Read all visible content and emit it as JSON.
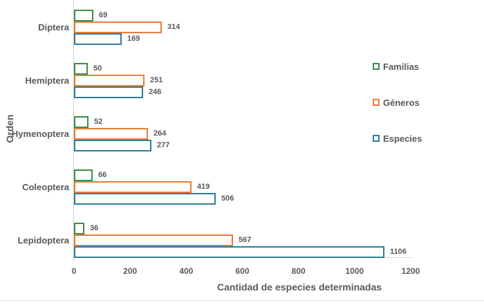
{
  "chart_data": {
    "type": "bar",
    "orientation": "horizontal",
    "title": "",
    "xlabel": "Cantidad de especies determinadas",
    "ylabel": "Orden",
    "categories": [
      "Diptera",
      "Hemiptera",
      "Hymenoptera",
      "Coleoptera",
      "Lepidoptera"
    ],
    "series": [
      {
        "name": "Familias",
        "color": "#3a8e4b",
        "values": [
          69,
          50,
          52,
          66,
          36
        ]
      },
      {
        "name": "Géneros",
        "color": "#e87c38",
        "values": [
          314,
          251,
          264,
          419,
          567
        ]
      },
      {
        "name": "Especies",
        "color": "#2f7d9c",
        "values": [
          169,
          246,
          277,
          506,
          1106
        ]
      }
    ],
    "xticks": [
      0,
      200,
      400,
      600,
      800,
      1000,
      1200
    ],
    "xlim": [
      0,
      1200
    ],
    "grid": false,
    "legend_position": "right",
    "bar_style": "outlined-hollow",
    "data_labels": true
  },
  "colors": {
    "text": "#595959",
    "axis_line": "#d9d9d9",
    "y_axis_line": "#cfcfcf",
    "bottom_divider": "#d9e3f0",
    "background": "#ffffff"
  }
}
